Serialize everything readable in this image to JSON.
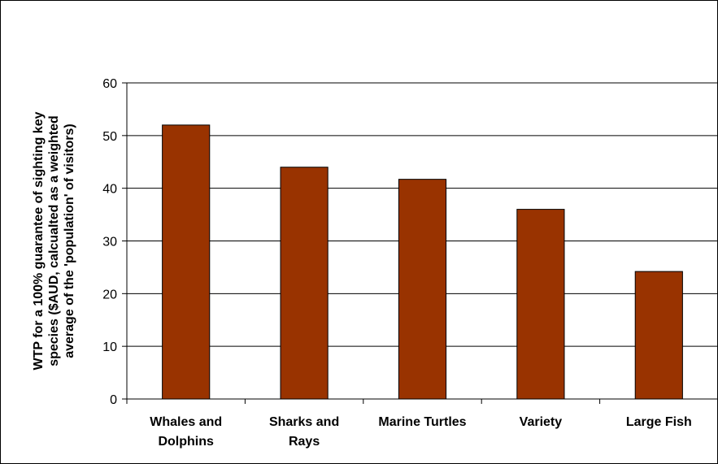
{
  "chart_data": {
    "type": "bar",
    "categories": [
      "Whales and Dolphins",
      "Sharks and Rays",
      "Marine Turtles",
      "Variety",
      "Large Fish"
    ],
    "category_label_lines": [
      [
        "Whales and",
        "Dolphins"
      ],
      [
        "Sharks and",
        "Rays"
      ],
      [
        "Marine Turtles"
      ],
      [
        "Variety"
      ],
      [
        "Large Fish"
      ]
    ],
    "values": [
      52,
      44,
      41.7,
      36,
      24.2
    ],
    "ylabel": "WTP for a 100% guarantee of sighting key species ($AUD, calcualted as a weighted average of the 'population' of visitors)",
    "ylabel_lines": [
      "WTP for a 100% guarantee of sighting key",
      "species ($AUD, calcualted as a weighted",
      "average of the 'population' of visitors)"
    ],
    "ylim": [
      0,
      60
    ],
    "yticks": [
      0,
      10,
      20,
      30,
      40,
      50,
      60
    ],
    "grid": true,
    "bar_color": "#993300",
    "legend": "none"
  }
}
